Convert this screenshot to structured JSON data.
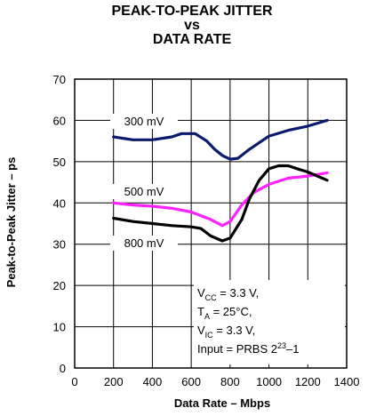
{
  "title_lines": [
    "PEAK-TO-PEAK JITTER",
    "vs",
    "DATA RATE"
  ],
  "chart_data": {
    "type": "line",
    "xlabel": "Data Rate – Mbps",
    "ylabel": "Peak-to-Peak Jitter – ps",
    "xlim": [
      0,
      1400
    ],
    "ylim": [
      0,
      70
    ],
    "x_ticks": [
      0,
      200,
      400,
      600,
      800,
      1000,
      1200,
      1400
    ],
    "y_ticks": [
      0,
      10,
      20,
      30,
      40,
      50,
      60,
      70
    ],
    "grid": true,
    "series": [
      {
        "name": "300 mV",
        "color": "#0a1a6e",
        "points": [
          [
            200,
            56
          ],
          [
            300,
            55.3
          ],
          [
            400,
            55.3
          ],
          [
            500,
            56
          ],
          [
            550,
            56.8
          ],
          [
            620,
            56.8
          ],
          [
            680,
            55
          ],
          [
            720,
            53
          ],
          [
            760,
            51.5
          ],
          [
            800,
            50.6
          ],
          [
            840,
            50.8
          ],
          [
            900,
            53
          ],
          [
            1000,
            56.2
          ],
          [
            1100,
            57.6
          ],
          [
            1200,
            58.6
          ],
          [
            1300,
            60
          ]
        ]
      },
      {
        "name": "500 mV",
        "color": "#ff22ff",
        "points": [
          [
            200,
            40
          ],
          [
            300,
            39.5
          ],
          [
            400,
            39.2
          ],
          [
            500,
            38.7
          ],
          [
            600,
            37.8
          ],
          [
            700,
            36
          ],
          [
            760,
            34.5
          ],
          [
            800,
            35.5
          ],
          [
            860,
            39.5
          ],
          [
            920,
            42.5
          ],
          [
            1000,
            44.5
          ],
          [
            1100,
            46
          ],
          [
            1200,
            46.5
          ],
          [
            1300,
            47.3
          ]
        ]
      },
      {
        "name": "800 mV",
        "color": "#000000",
        "points": [
          [
            200,
            36.3
          ],
          [
            300,
            35.5
          ],
          [
            400,
            35
          ],
          [
            500,
            34.5
          ],
          [
            600,
            34.2
          ],
          [
            650,
            33.8
          ],
          [
            700,
            32
          ],
          [
            760,
            30.8
          ],
          [
            800,
            31.5
          ],
          [
            860,
            36
          ],
          [
            900,
            41
          ],
          [
            950,
            45.5
          ],
          [
            1000,
            48.3
          ],
          [
            1050,
            49
          ],
          [
            1100,
            49
          ],
          [
            1150,
            48.2
          ],
          [
            1200,
            47.5
          ],
          [
            1300,
            45.5
          ]
        ]
      }
    ],
    "annotations": [
      {
        "text": "V",
        "sub": "CC",
        "rest": " = 3.3 V,"
      },
      {
        "text": "T",
        "sub": "A",
        "rest": " = 25°C,"
      },
      {
        "text": "V",
        "sub": "IC",
        "rest": " = 3.3 V,"
      },
      {
        "text": "Input = PRBS 2",
        "sup": "23",
        "rest": "–1"
      }
    ]
  }
}
